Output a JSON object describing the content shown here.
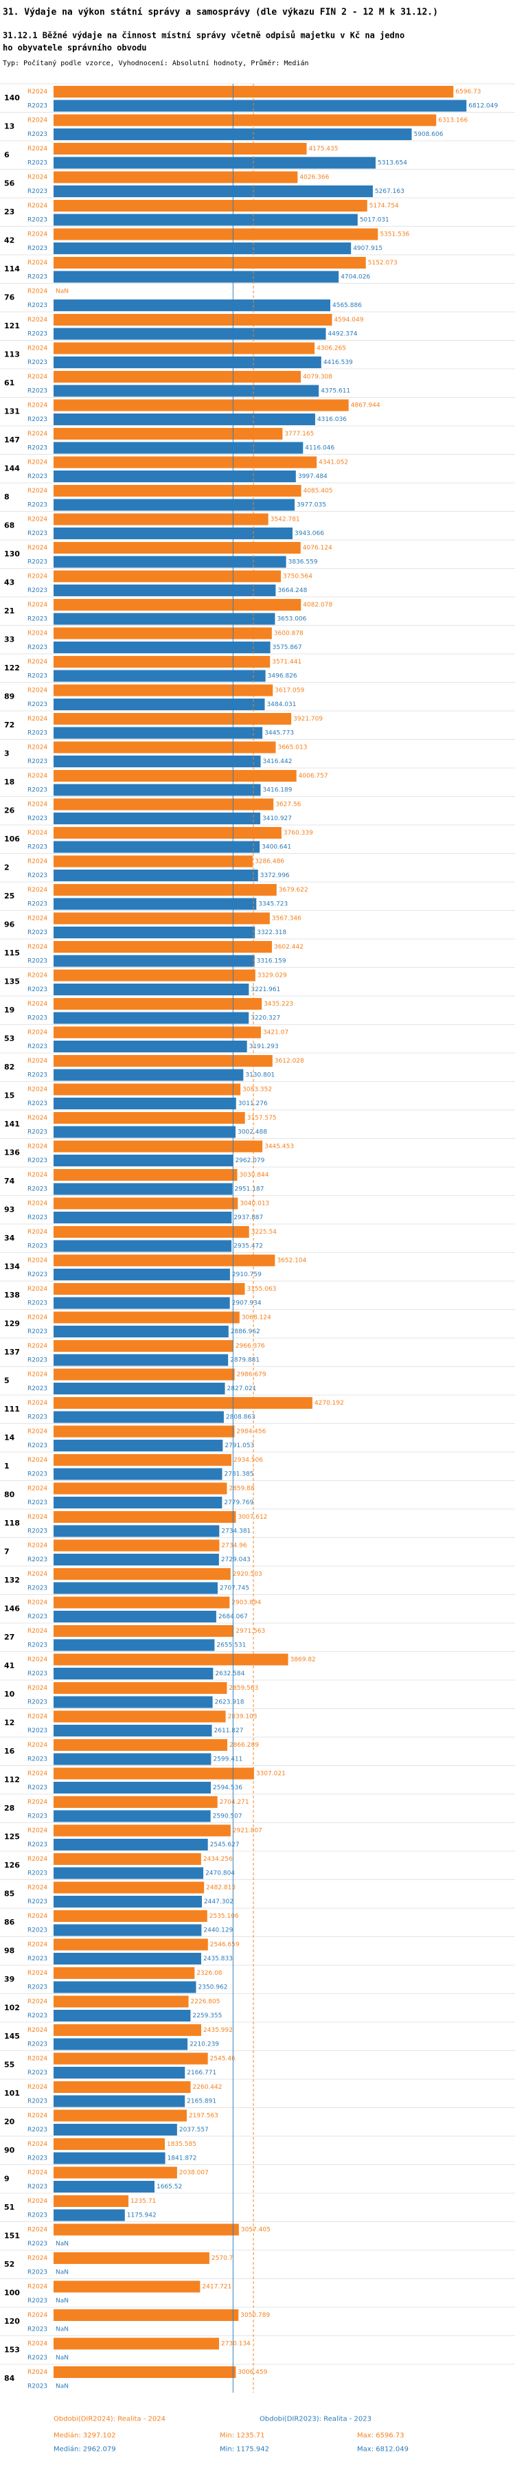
{
  "chart_data": {
    "type": "grouped-hbar",
    "title": "31. Výdaje na výkon státní správy a samosprávy (dle výkazu FIN 2 - 12 M k 31.12.)",
    "subtitle": [
      "31.12.1 Běžné výdaje na činnost místní správy včetně odpisů majetku v Kč na jedno",
      "ho obyvatele správního obvodu"
    ],
    "note": "Typ: Počítaný podle vzorce, Vyhodnocení: Absolutní hodnoty, Průměr: Medián",
    "missing_label": "NaN",
    "xlim": [
      0,
      7500
    ],
    "categories": [
      "140",
      "13",
      "6",
      "56",
      "23",
      "42",
      "114",
      "76",
      "121",
      "113",
      "61",
      "131",
      "147",
      "144",
      "8",
      "68",
      "130",
      "43",
      "21",
      "33",
      "122",
      "89",
      "72",
      "3",
      "18",
      "26",
      "106",
      "2",
      "25",
      "96",
      "115",
      "135",
      "19",
      "53",
      "82",
      "15",
      "141",
      "136",
      "74",
      "93",
      "34",
      "134",
      "138",
      "129",
      "137",
      "5",
      "111",
      "14",
      "1",
      "80",
      "118",
      "7",
      "132",
      "146",
      "27",
      "41",
      "10",
      "12",
      "16",
      "112",
      "28",
      "125",
      "126",
      "85",
      "86",
      "98",
      "39",
      "102",
      "145",
      "55",
      "101",
      "20",
      "90",
      "9",
      "51",
      "151",
      "52",
      "100",
      "120",
      "153",
      "84"
    ],
    "series": [
      {
        "name": "R2024",
        "color": "#f58220",
        "period": "Obdobi(DIR2024): Realita - 2024",
        "median": {
          "value": 3297.102,
          "label": "Medián: 3297.102"
        },
        "min": {
          "value": 1235.71,
          "label": "Min: 1235.71"
        },
        "max": {
          "value": 6596.73,
          "label": "Max: 6596.73"
        },
        "values": [
          6596.73,
          6313.166,
          4175.435,
          4026.366,
          5174.754,
          5351.536,
          5152.073,
          null,
          4594.049,
          4306.265,
          4079.308,
          4867.944,
          3777.165,
          4341.052,
          4085.405,
          3542.781,
          4076.124,
          3750.564,
          4082.078,
          3600.878,
          3571.441,
          3617.059,
          3921.709,
          3665.013,
          4006.757,
          3627.56,
          3760.339,
          3286.486,
          3679.622,
          3567.346,
          3602.442,
          3329.029,
          3435.223,
          3421.07,
          3612.028,
          3083.352,
          3157.575,
          3445.453,
          3030.844,
          3040.013,
          3225.54,
          3652.104,
          3155.063,
          3068.124,
          2966.376,
          2986.679,
          4270.192,
          2984.456,
          2934.506,
          2859.88,
          3007.612,
          2734.96,
          2920.503,
          2903.894,
          2971.563,
          3869.82,
          2859.563,
          2839.103,
          2866.289,
          3307.021,
          2704.271,
          2921.807,
          2434.256,
          2482.813,
          2535.106,
          2546.659,
          2326.08,
          2226.805,
          2435.992,
          2545.46,
          2260.442,
          2197.563,
          1835.585,
          2038.007,
          1235.71,
          3057.405,
          2570.7,
          2417.721,
          3050.789,
          2730.134,
          3006.459
        ]
      },
      {
        "name": "R2023",
        "color": "#2b7bba",
        "period": "Obdobi(DIR2023): Realita - 2023",
        "median": {
          "value": 2962.079,
          "label": "Medián: 2962.079"
        },
        "min": {
          "value": 1175.942,
          "label": "Min: 1175.942"
        },
        "max": {
          "value": 6812.049,
          "label": "Max: 6812.049"
        },
        "values": [
          6812.049,
          5908.606,
          5313.654,
          5267.163,
          5017.031,
          4907.915,
          4704.026,
          4565.886,
          4492.374,
          4416.539,
          4375.611,
          4316.036,
          4116.046,
          3997.484,
          3977.035,
          3943.066,
          3836.559,
          3664.248,
          3653.006,
          3575.867,
          3496.826,
          3484.031,
          3445.773,
          3416.442,
          3416.189,
          3410.927,
          3400.641,
          3372.996,
          3345.723,
          3322.318,
          3316.159,
          3221.961,
          3220.327,
          3191.293,
          3130.801,
          3011.276,
          3002.488,
          2962.079,
          2951.187,
          2937.887,
          2935.472,
          2910.759,
          2907.934,
          2886.962,
          2879.881,
          2827.021,
          2808.863,
          2791.053,
          2781.385,
          2779.769,
          2734.381,
          2729.043,
          2707.745,
          2684.067,
          2655.531,
          2632.584,
          2623.918,
          2611.827,
          2599.411,
          2594.536,
          2590.507,
          2545.627,
          2470.804,
          2447.302,
          2440.129,
          2435.833,
          2350.962,
          2259.355,
          2210.239,
          2166.771,
          2165.891,
          2037.557,
          1841.872,
          1665.52,
          1175.942,
          null,
          null,
          null,
          null,
          null,
          null
        ]
      }
    ]
  }
}
